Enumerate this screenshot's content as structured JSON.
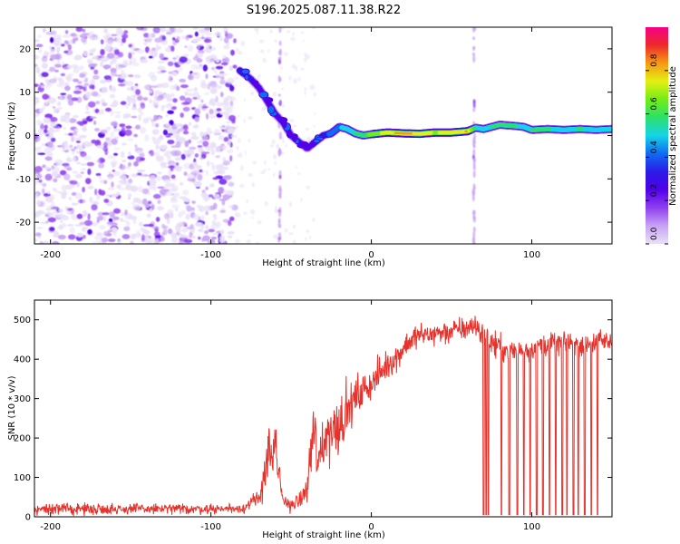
{
  "title": "S196.2025.087.11.38.R22",
  "colors": {
    "line": "#e8312a",
    "colormap": [
      "#e9e1f7",
      "#c7a3f4",
      "#8f3ff0",
      "#5200e8",
      "#2a1be6",
      "#0f6cf2",
      "#15d4e8",
      "#2be06a",
      "#74ec17",
      "#e4ef12",
      "#f59a14",
      "#ed2a2a",
      "#f50088"
    ]
  },
  "chart_data": [
    {
      "type": "heatmap",
      "id": "spectrogram",
      "xlabel": "Height of straight line (km)",
      "ylabel": "Frequency (Hz)",
      "xlim": [
        -210,
        150
      ],
      "ylim": [
        -25,
        25
      ],
      "xticks": [
        -200,
        -100,
        0,
        100
      ],
      "yticks": [
        -20,
        -10,
        0,
        10,
        20
      ],
      "colorbar": {
        "label": "Normalized spectral amplitude",
        "range": [
          0,
          1
        ],
        "ticks": [
          0.0,
          0.2,
          0.4,
          0.6,
          0.8
        ]
      },
      "noise_region": {
        "x_range": [
          -210,
          -85
        ],
        "amplitude": 0.35
      },
      "vertical_streaks_x": [
        -57,
        64
      ],
      "ridge": {
        "x": [
          -82,
          -75,
          -70,
          -65,
          -60,
          -55,
          -50,
          -45,
          -40,
          -35,
          -30,
          -25,
          -20,
          -15,
          -10,
          -5,
          0,
          10,
          20,
          30,
          40,
          50,
          60,
          65,
          70,
          80,
          90,
          95,
          100,
          110,
          120,
          130,
          140,
          150
        ],
        "y": [
          15,
          13,
          11,
          8,
          5,
          3,
          0,
          -1.5,
          -3,
          -1.5,
          0,
          0.5,
          2,
          1.5,
          0.5,
          0,
          0.3,
          0.7,
          0.5,
          0.4,
          0.7,
          0.7,
          1,
          1.8,
          1.5,
          2.5,
          2.2,
          2,
          1.3,
          1.5,
          1.3,
          1.5,
          1.3,
          1.5
        ],
        "amplitude": [
          0.35,
          0.3,
          0.25,
          0.25,
          0.25,
          0.25,
          0.3,
          0.3,
          0.25,
          0.35,
          0.35,
          0.4,
          0.45,
          0.5,
          0.55,
          0.6,
          0.65,
          0.75,
          0.85,
          0.75,
          0.7,
          0.75,
          0.8,
          0.55,
          0.5,
          0.6,
          0.55,
          0.5,
          0.55,
          0.55,
          0.5,
          0.55,
          0.5,
          0.5
        ]
      }
    },
    {
      "type": "line",
      "id": "snr",
      "xlabel": "Height of straight line (km)",
      "ylabel": "SNR (10 * v/v)",
      "xlim": [
        -210,
        150
      ],
      "ylim": [
        0,
        550
      ],
      "xticks": [
        -200,
        -100,
        0,
        100
      ],
      "yticks": [
        0,
        100,
        200,
        300,
        400,
        500
      ],
      "series": [
        {
          "name": "SNR",
          "envelope": {
            "x": [
              -210,
              -150,
              -100,
              -80,
              -70,
              -65,
              -60,
              -55,
              -50,
              -45,
              -40,
              -36,
              -33,
              -30,
              -25,
              -20,
              -15,
              -10,
              -5,
              0,
              5,
              10,
              15,
              20,
              25,
              30,
              40,
              50,
              60,
              65,
              70,
              75,
              80,
              90,
              100,
              110,
              120,
              130,
              140,
              150
            ],
            "y": [
              20,
              20,
              20,
              22,
              45,
              150,
              160,
              40,
              30,
              40,
              70,
              230,
              120,
              200,
              220,
              240,
              270,
              300,
              320,
              340,
              360,
              390,
              400,
              430,
              450,
              460,
              465,
              470,
              480,
              485,
              460,
              440,
              430,
              420,
              430,
              440,
              440,
              440,
              445,
              445
            ]
          },
          "noise_std": [
            14,
            14,
            12,
            12,
            25,
            70,
            80,
            20,
            15,
            20,
            30,
            110,
            60,
            90,
            80,
            70,
            60,
            50,
            45,
            40,
            40,
            35,
            35,
            35,
            35,
            30,
            30,
            30,
            30,
            30,
            35,
            35,
            35,
            30,
            30,
            30,
            30,
            30,
            30,
            30
          ],
          "dropouts_x": [
            70,
            71.5,
            73,
            81,
            86,
            91,
            95,
            99,
            103,
            107,
            111,
            115,
            119,
            122,
            126,
            129,
            133,
            137,
            141
          ],
          "dropout_value": 5
        }
      ]
    }
  ]
}
